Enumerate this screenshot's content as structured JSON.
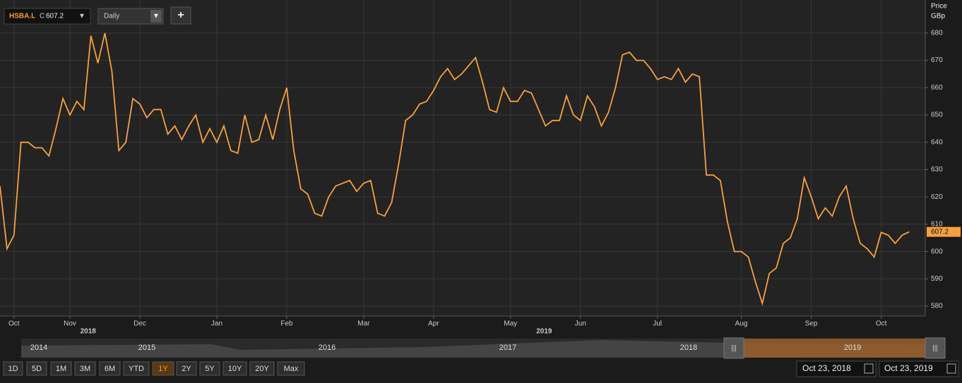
{
  "toolbar": {
    "close_prefix": "C",
    "interval": "Daily",
    "add": "+"
  },
  "chart_data": {
    "type": "line",
    "y_axis_title": "Price",
    "y_axis_unit": "GBp",
    "series": [
      {
        "name": "HSBA.L",
        "color": "#f7a03c",
        "values": [
          624,
          601,
          606,
          640,
          640,
          638,
          638,
          635,
          645,
          656,
          650,
          655,
          652,
          679,
          669,
          680,
          666,
          637,
          640,
          656,
          654,
          649,
          652,
          652,
          643,
          646,
          641,
          646,
          650,
          640,
          645,
          640,
          646,
          637,
          636,
          650,
          640,
          641,
          650,
          641,
          652,
          660,
          637,
          623,
          621,
          614,
          613,
          620,
          624,
          625,
          626,
          622,
          625,
          626,
          614,
          613,
          618,
          632,
          648,
          650,
          654,
          655,
          659,
          664,
          667,
          663,
          665,
          668,
          671,
          662,
          652,
          651,
          660,
          655,
          655,
          659,
          658,
          652,
          646,
          648,
          648,
          657,
          650,
          648,
          657,
          653,
          646,
          651,
          660,
          672,
          673,
          670,
          670,
          667,
          663,
          664,
          663,
          667,
          662,
          665,
          664,
          628,
          628,
          626,
          611,
          600,
          600,
          598,
          589,
          581,
          592,
          594,
          603,
          605,
          612,
          627,
          620,
          612,
          616,
          613,
          620,
          624,
          612,
          603,
          601,
          598,
          607,
          606,
          603,
          606,
          607.2
        ]
      }
    ],
    "xlim": [
      0,
      132.3
    ],
    "xticks": [
      {
        "value": 2,
        "label": "Oct"
      },
      {
        "value": 10,
        "label": "Nov"
      },
      {
        "value": 20,
        "label": "Dec"
      },
      {
        "value": 31,
        "label": "Jan"
      },
      {
        "value": 41,
        "label": "Feb"
      },
      {
        "value": 52,
        "label": "Mar"
      },
      {
        "value": 62,
        "label": "Apr"
      },
      {
        "value": 73,
        "label": "May"
      },
      {
        "value": 83,
        "label": "Jun"
      },
      {
        "value": 94,
        "label": "Jul"
      },
      {
        "value": 106,
        "label": "Aug"
      },
      {
        "value": 116,
        "label": "Sep"
      },
      {
        "value": 126,
        "label": "Oct"
      }
    ],
    "year_ticks": [
      {
        "value": 12.6,
        "label": "2018"
      },
      {
        "value": 77.8,
        "label": "2019"
      }
    ],
    "ylim": [
      576.4,
      692.1
    ],
    "yticks": [
      580,
      590,
      600,
      610,
      620,
      630,
      640,
      650,
      660,
      670,
      680
    ],
    "grid": true
  },
  "navigator": {
    "years": [
      "2014",
      "2015",
      "2016",
      "2017",
      "2018",
      "2019"
    ]
  },
  "periods": [
    "1D",
    "5D",
    "1M",
    "3M",
    "6M",
    "YTD",
    "1Y",
    "2Y",
    "5Y",
    "10Y",
    "20Y",
    "Max"
  ],
  "selected_period": "1Y",
  "date_range": [
    "Oct 23, 2018",
    "Oct 23, 2019"
  ]
}
